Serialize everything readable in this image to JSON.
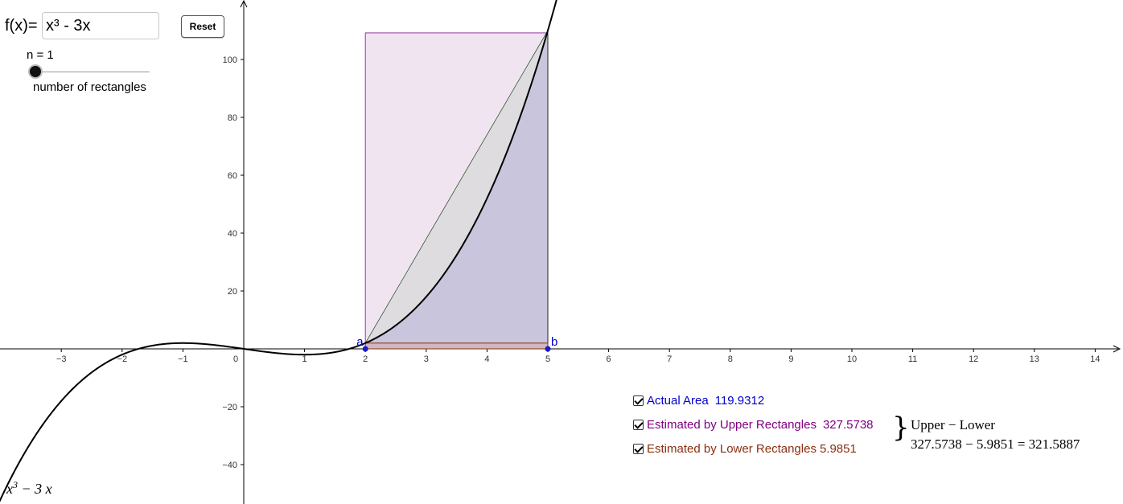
{
  "function_input": {
    "label": "f(x)=",
    "value": "x³ - 3x"
  },
  "reset_button": {
    "label": "Reset"
  },
  "slider": {
    "label": "n = 1",
    "caption": "number of rectangles",
    "value": 1
  },
  "graph": {
    "x_ticks": [
      "-3",
      "-2",
      "-1",
      "0",
      "1",
      "2",
      "3",
      "4",
      "5",
      "6",
      "7",
      "8",
      "9",
      "10",
      "11",
      "12",
      "13",
      "14"
    ],
    "y_ticks": [
      "100",
      "80",
      "60",
      "40",
      "20",
      "-20",
      "-40"
    ],
    "interval": {
      "a": 2,
      "b": 5
    },
    "point_labels": {
      "a": "a",
      "b": "b"
    },
    "upper_rect_height": 109.19,
    "lower_rect_height": 1.995,
    "function_caption": {
      "base": "x",
      "exp": "3",
      "rest": "− 3 x"
    },
    "colors": {
      "curve": "#000000",
      "upper_fill": "#f1e4f1",
      "upper_stroke": "#9933aa",
      "lower_fill": "#c9c5dc",
      "lower_stroke": "#8b2f0f",
      "point": "#1a1ac8",
      "label_blue": "#0000cc"
    }
  },
  "checkboxes": [
    {
      "label": "Actual Area",
      "value": "119.9312",
      "color": "#0000cc",
      "checked": true
    },
    {
      "label": "Estimated by Upper Rectangles",
      "value": "327.5738",
      "color": "#800080",
      "checked": true
    },
    {
      "label": "Estimated by Lower Rectangles",
      "value": "5.9851",
      "color": "#8b2f0f",
      "checked": true
    }
  ],
  "difference": {
    "title": "Upper − Lower",
    "expression": "327.5738 − 5.9851 = 321.5887"
  }
}
